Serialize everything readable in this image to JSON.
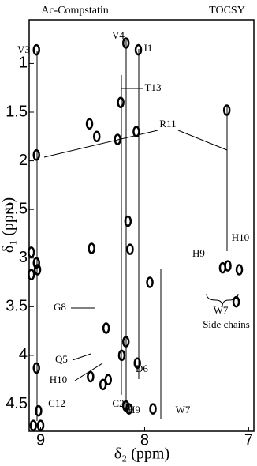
{
  "chart_data": {
    "type": "scatter",
    "title": "Ac-Compstatin",
    "subtitle": "TOCSY",
    "x_label": "δ₂ (ppm)",
    "y_label": "δ₁ (ppm)",
    "x": [
      9.04,
      9.04,
      9.09,
      9.09,
      9.04,
      9.03,
      9.04,
      9.02,
      9.07,
      9.0,
      8.18,
      8.06,
      8.53,
      8.23,
      8.08,
      8.46,
      8.26,
      8.16,
      8.14,
      8.51,
      8.37,
      8.18,
      8.22,
      8.07,
      8.52,
      8.35,
      8.4,
      8.18,
      8.15,
      7.95,
      7.92,
      7.21,
      7.2,
      7.25,
      7.09,
      7.12
    ],
    "values": [
      0.86,
      1.94,
      2.94,
      3.17,
      3.05,
      3.12,
      4.13,
      4.57,
      4.72,
      4.72,
      0.79,
      0.86,
      1.62,
      1.4,
      1.7,
      1.75,
      1.78,
      2.62,
      2.91,
      2.9,
      3.72,
      3.86,
      4.0,
      4.08,
      4.22,
      4.25,
      4.3,
      4.52,
      4.55,
      3.25,
      4.55,
      1.48,
      3.08,
      3.1,
      3.12,
      3.45
    ],
    "color": "#000000",
    "xlim": [
      9.11,
      6.95
    ],
    "xticks": [
      9,
      8,
      7
    ],
    "ylim": [
      0.55,
      4.78
    ],
    "yticks": [
      1,
      1.5,
      2,
      2.5,
      3,
      3.5,
      4,
      4.5
    ],
    "annotations": [
      "V3",
      "V4",
      "I1",
      "T13",
      "R11",
      "G8",
      "Q5",
      "H10",
      "C12",
      "C2",
      "D6",
      "H9",
      "W7",
      "H9",
      "H10",
      "W7",
      "Side chains"
    ]
  }
}
